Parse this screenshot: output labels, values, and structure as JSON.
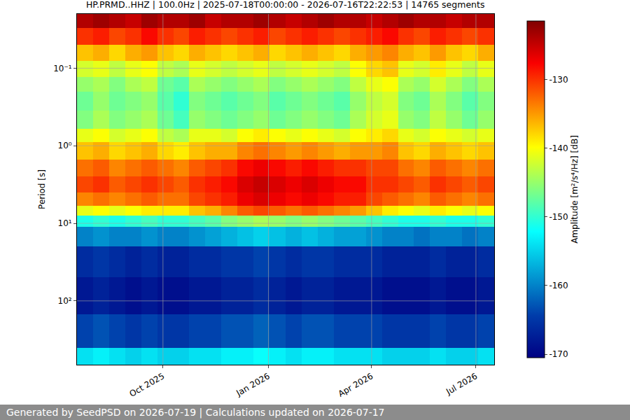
{
  "chart_data": {
    "type": "heatmap",
    "title": "HP.PRMD..HHZ | 100.0Hz | 2025-07-18T00:00:00 - 2026-07-16T22:22:53 | 14765 segments",
    "footer": "Generated by SeedPSD on 2026-07-19 | Calculations updated on 2026-07-17",
    "ylabel": "Period [s]",
    "colorbar_label": "Amplitude [m²/s⁴/Hz] [dB]",
    "color": "Jet",
    "log": "y",
    "grid": true,
    "xlim": [
      "2025-07-18 00:00:00",
      "2026-07-16 22:22:53"
    ],
    "xticks": [
      {
        "value": "2025-10-01",
        "label": "Oct 2025"
      },
      {
        "value": "2026-01-01",
        "label": "Jan 2026"
      },
      {
        "value": "2026-04-01",
        "label": "Apr 2026"
      },
      {
        "value": "2026-07-01",
        "label": "Jul 2026"
      }
    ],
    "ylim": [
      665,
      0.02
    ],
    "yticks": [
      {
        "value": 0.1,
        "label": "10⁻¹"
      },
      {
        "value": 1,
        "label": "10⁰"
      },
      {
        "value": 10,
        "label": "10¹"
      },
      {
        "value": 100,
        "label": "10²"
      }
    ],
    "zlim": [
      -170.5,
      -121.5
    ],
    "zticks": [
      -130,
      -140,
      -150,
      -160,
      -170
    ],
    "time_edges": [
      "2025-07-18",
      "2025-08-01",
      "2025-08-15",
      "2025-08-29",
      "2025-09-12",
      "2025-09-26",
      "2025-10-10",
      "2025-10-24",
      "2025-11-07",
      "2025-11-21",
      "2025-12-05",
      "2025-12-19",
      "2026-01-02",
      "2026-01-16",
      "2026-01-30",
      "2026-02-13",
      "2026-02-27",
      "2026-03-13",
      "2026-03-27",
      "2026-04-10",
      "2026-04-24",
      "2026-05-08",
      "2026-05-22",
      "2026-06-05",
      "2026-06-19",
      "2026-07-03",
      "2026-07-16 22:22:53"
    ],
    "period_edges": [
      0.02,
      0.03,
      0.05,
      0.08,
      0.13,
      0.2,
      0.35,
      0.6,
      0.9,
      1.5,
      2.5,
      4,
      6,
      8,
      11,
      20,
      50,
      150,
      400,
      665
    ],
    "cells": [
      [
        -124,
        -123,
        -124,
        -125,
        -123,
        -124,
        -124,
        -123,
        -125,
        -124,
        -124,
        -123,
        -124,
        -125,
        -124,
        -123,
        -124,
        -124,
        -125,
        -124,
        -123,
        -124,
        -124,
        -125,
        -124,
        -124
      ],
      [
        -130,
        -129,
        -131,
        -130,
        -128,
        -130,
        -131,
        -129,
        -130,
        -131,
        -130,
        -129,
        -131,
        -130,
        -129,
        -130,
        -131,
        -130,
        -129,
        -128,
        -130,
        -131,
        -129,
        -130,
        -131,
        -130
      ],
      [
        -137,
        -136,
        -138,
        -136,
        -135,
        -137,
        -138,
        -136,
        -137,
        -138,
        -137,
        -136,
        -138,
        -137,
        -136,
        -137,
        -138,
        -136,
        -135,
        -134,
        -136,
        -137,
        -135,
        -137,
        -138,
        -136
      ],
      [
        -142,
        -141,
        -143,
        -141,
        -140,
        -143,
        -144,
        -141,
        -142,
        -143,
        -142,
        -141,
        -143,
        -142,
        -141,
        -142,
        -143,
        -140,
        -138,
        -137,
        -141,
        -142,
        -139,
        -141,
        -143,
        -141
      ],
      [
        -145,
        -144,
        -146,
        -144,
        -143,
        -147,
        -148,
        -144,
        -145,
        -146,
        -145,
        -144,
        -146,
        -145,
        -144,
        -145,
        -146,
        -143,
        -141,
        -140,
        -144,
        -145,
        -142,
        -144,
        -146,
        -144
      ],
      [
        -147,
        -145,
        -147,
        -146,
        -145,
        -148,
        -150,
        -146,
        -147,
        -148,
        -147,
        -146,
        -148,
        -147,
        -146,
        -147,
        -148,
        -145,
        -143,
        -142,
        -146,
        -147,
        -144,
        -146,
        -148,
        -146
      ],
      [
        -146,
        -144,
        -146,
        -145,
        -144,
        -147,
        -149,
        -145,
        -146,
        -147,
        -146,
        -145,
        -147,
        -146,
        -145,
        -146,
        -147,
        -144,
        -142,
        -141,
        -145,
        -146,
        -143,
        -145,
        -147,
        -145
      ],
      [
        -141,
        -140,
        -142,
        -141,
        -140,
        -143,
        -144,
        -141,
        -141,
        -142,
        -140,
        -139,
        -140,
        -141,
        -140,
        -141,
        -142,
        -140,
        -139,
        -138,
        -141,
        -142,
        -140,
        -141,
        -142,
        -141
      ],
      [
        -137,
        -136,
        -138,
        -137,
        -136,
        -138,
        -139,
        -137,
        -136,
        -136,
        -134,
        -133,
        -134,
        -135,
        -134,
        -135,
        -136,
        -135,
        -135,
        -134,
        -137,
        -138,
        -136,
        -137,
        -138,
        -137
      ],
      [
        -133,
        -132,
        -134,
        -133,
        -132,
        -133,
        -134,
        -132,
        -131,
        -130,
        -128,
        -127,
        -128,
        -129,
        -128,
        -129,
        -130,
        -130,
        -131,
        -131,
        -133,
        -134,
        -132,
        -133,
        -134,
        -133
      ],
      [
        -131,
        -130,
        -132,
        -131,
        -130,
        -131,
        -132,
        -130,
        -129,
        -128,
        -126,
        -125,
        -126,
        -127,
        -126,
        -127,
        -128,
        -128,
        -130,
        -130,
        -131,
        -132,
        -130,
        -131,
        -132,
        -131
      ],
      [
        -134,
        -133,
        -134,
        -133,
        -132,
        -133,
        -133,
        -131,
        -130,
        -129,
        -127,
        -126,
        -127,
        -128,
        -127,
        -128,
        -129,
        -129,
        -131,
        -132,
        -133,
        -134,
        -132,
        -133,
        -134,
        -133
      ],
      [
        -141,
        -140,
        -141,
        -140,
        -139,
        -139,
        -139,
        -137,
        -136,
        -134,
        -132,
        -131,
        -132,
        -133,
        -132,
        -133,
        -134,
        -135,
        -137,
        -139,
        -140,
        -141,
        -139,
        -140,
        -141,
        -140
      ],
      [
        -151,
        -150,
        -151,
        -150,
        -149,
        -150,
        -150,
        -149,
        -148,
        -146,
        -145,
        -144,
        -145,
        -146,
        -145,
        -146,
        -147,
        -148,
        -149,
        -150,
        -151,
        -151,
        -150,
        -151,
        -151,
        -150
      ],
      [
        -160,
        -159,
        -160,
        -160,
        -159,
        -160,
        -160,
        -159,
        -158,
        -157,
        -156,
        -155,
        -156,
        -157,
        -156,
        -157,
        -158,
        -158,
        -159,
        -160,
        -160,
        -161,
        -160,
        -160,
        -161,
        -160
      ],
      [
        -166,
        -165,
        -166,
        -167,
        -166,
        -167,
        -167,
        -166,
        -166,
        -165,
        -165,
        -164,
        -165,
        -166,
        -165,
        -165,
        -166,
        -166,
        -166,
        -167,
        -167,
        -167,
        -166,
        -167,
        -167,
        -166
      ],
      [
        -168,
        -167,
        -168,
        -169,
        -168,
        -169,
        -169,
        -168,
        -168,
        -167,
        -167,
        -166,
        -167,
        -168,
        -167,
        -167,
        -168,
        -168,
        -168,
        -169,
        -169,
        -169,
        -168,
        -169,
        -169,
        -168
      ],
      [
        -164,
        -163,
        -164,
        -165,
        -164,
        -165,
        -165,
        -164,
        -164,
        -163,
        -163,
        -162,
        -163,
        -164,
        -163,
        -163,
        -164,
        -164,
        -164,
        -165,
        -165,
        -165,
        -164,
        -165,
        -165,
        -164
      ],
      [
        -154,
        -153,
        -154,
        -155,
        -154,
        -155,
        -155,
        -154,
        -154,
        -153,
        -153,
        -152,
        -153,
        -154,
        -153,
        -153,
        -154,
        -154,
        -154,
        -155,
        -155,
        -155,
        -154,
        -155,
        -155,
        -154
      ]
    ]
  }
}
